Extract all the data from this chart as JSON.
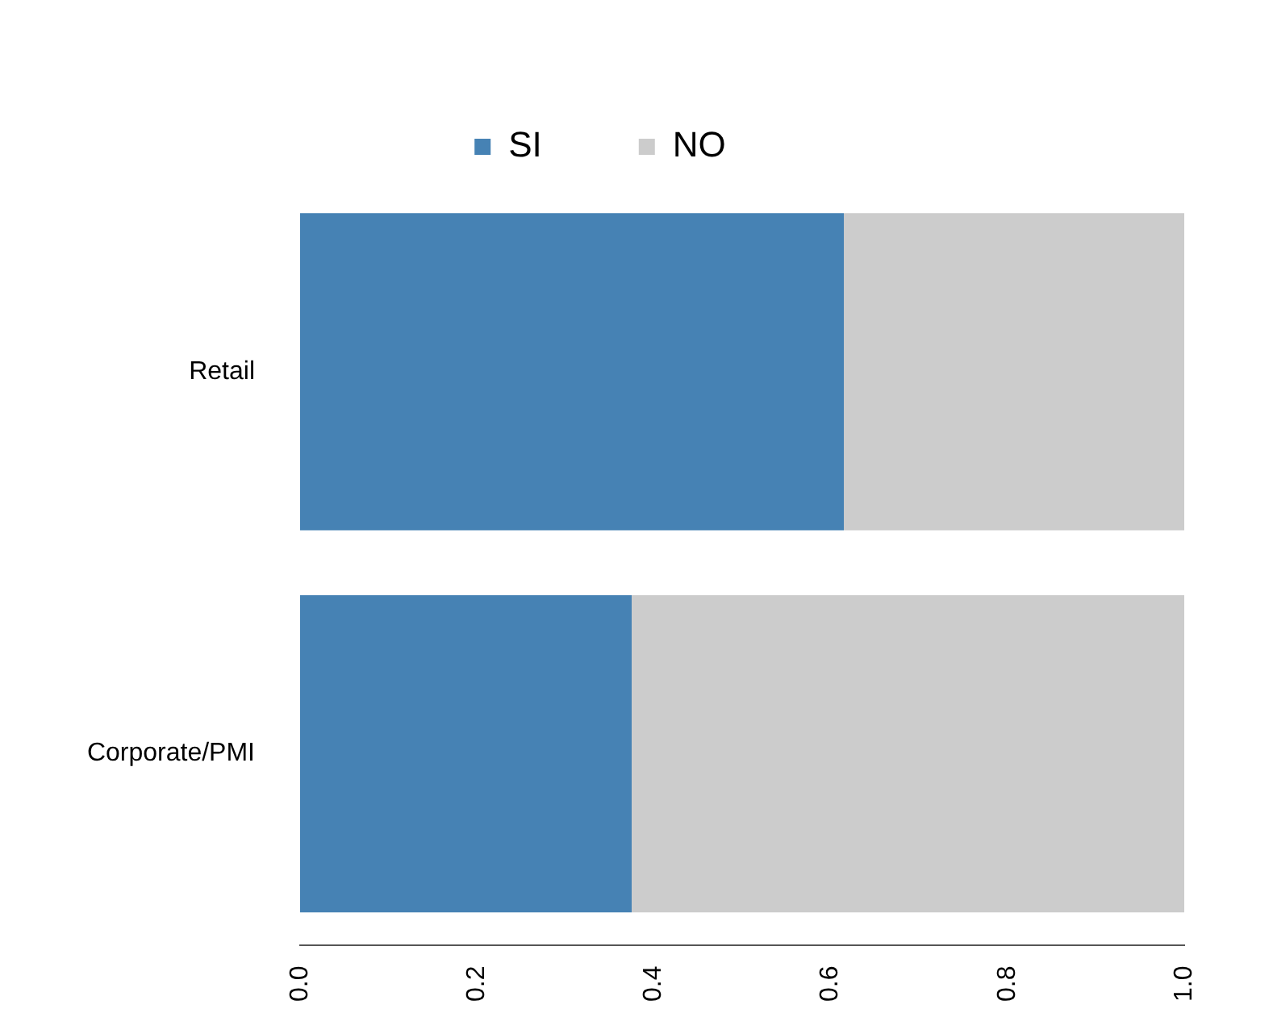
{
  "chart_data": {
    "type": "bar",
    "orientation": "horizontal",
    "stacked": true,
    "categories": [
      "Retail",
      "Corporate/PMI"
    ],
    "series": [
      {
        "name": "SI",
        "color": "#4682b4",
        "values": [
          0.615,
          0.375
        ]
      },
      {
        "name": "NO",
        "color": "#cccccc",
        "values": [
          0.385,
          0.625
        ]
      }
    ],
    "xlim": [
      0,
      1
    ],
    "xticks": [
      {
        "value": 0,
        "label": "0.0"
      },
      {
        "value": 0.2,
        "label": "0.2"
      },
      {
        "value": 0.4,
        "label": "0.4"
      },
      {
        "value": 0.6,
        "label": "0.6"
      },
      {
        "value": 0.8,
        "label": "0.8"
      },
      {
        "value": 1,
        "label": "1.0"
      }
    ],
    "grid": false,
    "legend": "top"
  }
}
